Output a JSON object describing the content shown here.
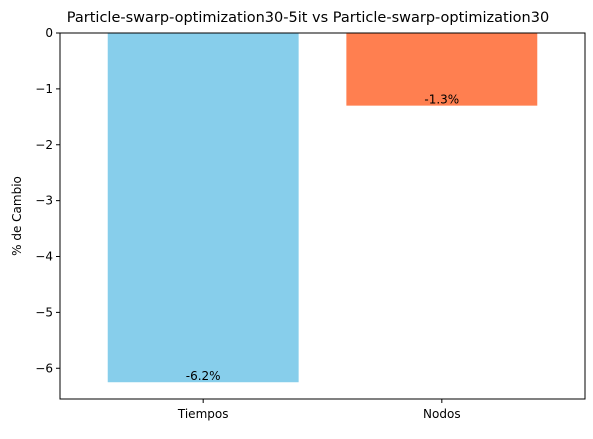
{
  "chart_data": {
    "type": "bar",
    "title": "Particle-swarp-optimization30-5it vs Particle-swarp-optimization30",
    "xlabel": "",
    "ylabel": "% de Cambio",
    "categories": [
      "Tiempos",
      "Nodos"
    ],
    "values": [
      -6.25,
      -1.3
    ],
    "data_labels": [
      "-6.2%",
      "-1.3%"
    ],
    "colors": [
      "#87CEEB",
      "#FF7F50"
    ],
    "ylim": [
      -6.55,
      0
    ],
    "yticks": [
      0,
      -1,
      -2,
      -3,
      -4,
      -5,
      -6
    ],
    "ytick_labels": [
      "0",
      "−1",
      "−2",
      "−3",
      "−4",
      "−5",
      "−6"
    ],
    "grid": false,
    "legend": "none"
  }
}
